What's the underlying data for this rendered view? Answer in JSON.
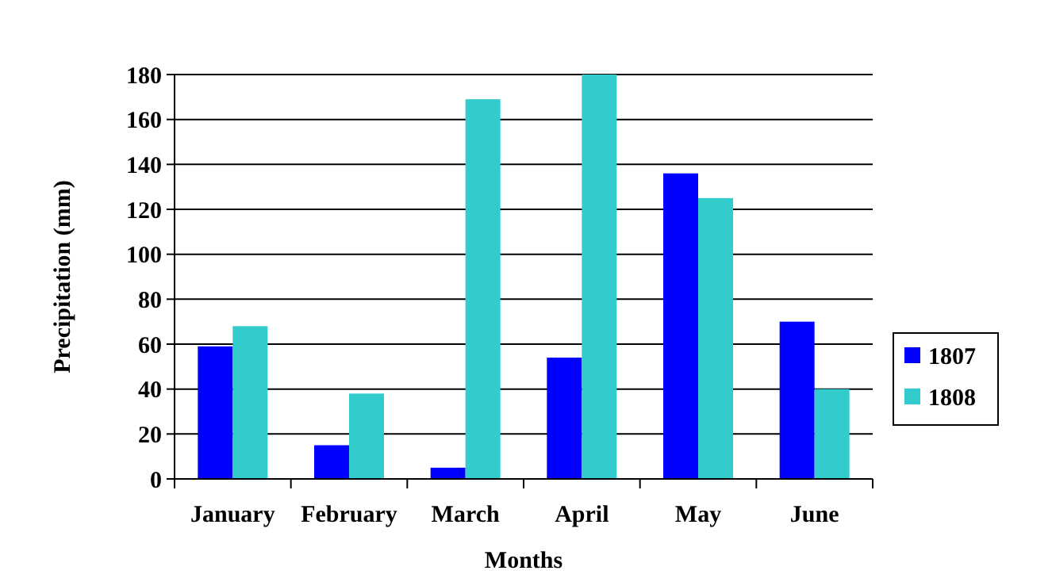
{
  "chart_data": {
    "type": "bar",
    "xlabel": "Months",
    "ylabel": "Precipitation (mm)",
    "categories": [
      "January",
      "February",
      "March",
      "April",
      "May",
      "June"
    ],
    "series": [
      {
        "name": "1807",
        "color": "#0000ff",
        "values": [
          59,
          15,
          5,
          54,
          136,
          70
        ]
      },
      {
        "name": "1808",
        "color": "#33cccc",
        "values": [
          68,
          38,
          169,
          180,
          125,
          40
        ]
      }
    ],
    "ylim": [
      0,
      180
    ],
    "yticks": [
      0,
      20,
      40,
      60,
      80,
      100,
      120,
      140,
      160,
      180
    ],
    "grid": "y",
    "legend": "right"
  }
}
